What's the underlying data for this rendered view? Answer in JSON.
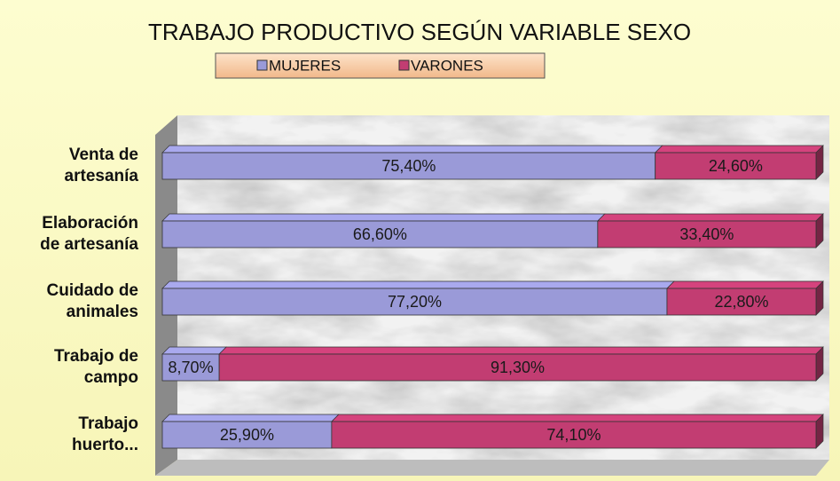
{
  "chart_data": {
    "type": "stacked-bar-horizontal",
    "title": "TRABAJO PRODUCTIVO SEGÚN VARIABLE SEXO",
    "categories": [
      "Venta de\nartesanía",
      "Elaboración\nde artesanía",
      "Cuidado de\nanimales",
      "Trabajo de\ncampo",
      "Trabajo\nhuerto..."
    ],
    "series": [
      {
        "name": "MUJERES",
        "color": "#9a9ad8",
        "values": [
          75.4,
          66.6,
          77.2,
          8.7,
          25.9
        ],
        "value_labels": [
          "75,40%",
          "66,60%",
          "77,20%",
          "8,70%",
          "25,90%"
        ]
      },
      {
        "name": "VARONES",
        "color": "#c23d72",
        "values": [
          24.6,
          33.4,
          22.8,
          91.3,
          74.1
        ],
        "value_labels": [
          "24,60%",
          "33,40%",
          "22,80%",
          "91,30%",
          "74,10%"
        ]
      }
    ],
    "xlim": [
      0,
      100
    ]
  }
}
